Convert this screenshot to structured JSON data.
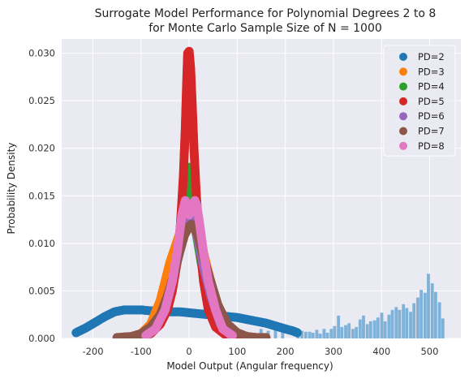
{
  "chart_data": {
    "type": "scatter",
    "title": "Surrogate Model Performance for Polynomial Degrees 2 to 8",
    "subtitle": "for Monte Carlo Sample Size of N = 1000",
    "xlabel": "Model Output (Angular frequency)",
    "ylabel": "Probability Density",
    "xlim": [
      -265,
      565
    ],
    "ylim": [
      0,
      0.0315
    ],
    "xticks": [
      -200,
      -100,
      0,
      100,
      200,
      300,
      400,
      500
    ],
    "yticks": [
      0.0,
      0.005,
      0.01,
      0.015,
      0.02,
      0.025,
      0.03
    ],
    "ytick_labels": [
      "0.000",
      "0.005",
      "0.010",
      "0.015",
      "0.020",
      "0.025",
      "0.030"
    ],
    "grid": true,
    "legend_position": "top-right",
    "colors": {
      "background": "#eaeaf2",
      "grid": "#ffffff",
      "histogram": "#7fb2d8"
    },
    "histogram": {
      "bin_width": 7.5,
      "bins": [
        [
          227,
          0.0006
        ],
        [
          235,
          0.0008
        ],
        [
          243,
          0.0007
        ],
        [
          251,
          0.0007
        ],
        [
          258,
          0.0006
        ],
        [
          266,
          0.0009
        ],
        [
          273,
          0.0005
        ],
        [
          281,
          0.001
        ],
        [
          288,
          0.0006
        ],
        [
          296,
          0.001
        ],
        [
          303,
          0.0013
        ],
        [
          311,
          0.0024
        ],
        [
          318,
          0.0012
        ],
        [
          326,
          0.0014
        ],
        [
          333,
          0.0016
        ],
        [
          341,
          0.001
        ],
        [
          348,
          0.0012
        ],
        [
          356,
          0.002
        ],
        [
          363,
          0.0024
        ],
        [
          371,
          0.0015
        ],
        [
          378,
          0.0018
        ],
        [
          386,
          0.0019
        ],
        [
          393,
          0.0022
        ],
        [
          401,
          0.0027
        ],
        [
          408,
          0.0018
        ],
        [
          416,
          0.0025
        ],
        [
          423,
          0.003
        ],
        [
          431,
          0.0033
        ],
        [
          438,
          0.003
        ],
        [
          446,
          0.0036
        ],
        [
          453,
          0.0032
        ],
        [
          461,
          0.0028
        ],
        [
          468,
          0.0037
        ],
        [
          476,
          0.0043
        ],
        [
          483,
          0.0051
        ],
        [
          491,
          0.0048
        ],
        [
          498,
          0.0068
        ],
        [
          506,
          0.0058
        ],
        [
          513,
          0.0049
        ],
        [
          521,
          0.0038
        ],
        [
          528,
          0.0021
        ],
        [
          90,
          0.0004
        ],
        [
          105,
          0.0005
        ],
        [
          120,
          0.0007
        ],
        [
          135,
          0.0005
        ],
        [
          150,
          0.001
        ],
        [
          165,
          0.0008
        ],
        [
          180,
          0.0009
        ],
        [
          195,
          0.0007
        ]
      ]
    },
    "series": [
      {
        "name": "PD=2",
        "color": "#1f77b4",
        "x": [
          -235,
          -215,
          -195,
          -175,
          -155,
          -135,
          -120,
          -100,
          -80,
          -60,
          -40,
          -20,
          0,
          20,
          40,
          60,
          80,
          100,
          120,
          140,
          160,
          180,
          200,
          215,
          225
        ],
        "y": [
          0.0006,
          0.0011,
          0.0017,
          0.0023,
          0.0028,
          0.003,
          0.003,
          0.003,
          0.0029,
          0.0029,
          0.0028,
          0.0028,
          0.0027,
          0.0026,
          0.0025,
          0.0024,
          0.0023,
          0.0022,
          0.002,
          0.0018,
          0.0016,
          0.0013,
          0.001,
          0.0008,
          0.0006
        ]
      },
      {
        "name": "PD=3",
        "color": "#ff7f0e",
        "x": [
          -100,
          -80,
          -60,
          -50,
          -40,
          -30,
          -20,
          -10,
          0,
          10,
          20,
          30,
          40,
          50,
          60,
          80,
          100
        ],
        "y": [
          0.0005,
          0.0015,
          0.004,
          0.006,
          0.008,
          0.0095,
          0.011,
          0.0125,
          0.013,
          0.0125,
          0.011,
          0.009,
          0.007,
          0.005,
          0.003,
          0.001,
          0.0003
        ]
      },
      {
        "name": "PD=4",
        "color": "#2ca02c",
        "x": [
          -90,
          -70,
          -50,
          -35,
          -25,
          -15,
          -8,
          -3,
          0,
          3,
          8,
          15,
          25,
          35,
          50,
          70,
          90
        ],
        "y": [
          0.0003,
          0.001,
          0.003,
          0.0055,
          0.008,
          0.011,
          0.014,
          0.017,
          0.018,
          0.017,
          0.014,
          0.011,
          0.008,
          0.0055,
          0.003,
          0.001,
          0.0003
        ]
      },
      {
        "name": "PD=5",
        "color": "#d62728",
        "x": [
          -95,
          -80,
          -60,
          -45,
          -35,
          -25,
          -18,
          -12,
          -8,
          -5,
          -3,
          0,
          3,
          6,
          10,
          15,
          22,
          30,
          40,
          55,
          75,
          95
        ],
        "y": [
          0.0002,
          0.0005,
          0.0015,
          0.003,
          0.005,
          0.008,
          0.012,
          0.017,
          0.022,
          0.027,
          0.03,
          0.0302,
          0.0285,
          0.025,
          0.02,
          0.015,
          0.01,
          0.006,
          0.003,
          0.0012,
          0.0004,
          0.0001
        ]
      },
      {
        "name": "PD=6",
        "color": "#9467bd",
        "x": [
          -85,
          -65,
          -45,
          -30,
          -20,
          -10,
          -3,
          0,
          3,
          10,
          20,
          30,
          45,
          65,
          85
        ],
        "y": [
          0.0004,
          0.0015,
          0.004,
          0.007,
          0.0095,
          0.012,
          0.013,
          0.0131,
          0.0128,
          0.012,
          0.01,
          0.0075,
          0.0045,
          0.0015,
          0.0004
        ]
      },
      {
        "name": "PD=7",
        "color": "#8c564b",
        "x": [
          -150,
          -120,
          -100,
          -80,
          -60,
          -45,
          -30,
          -20,
          -10,
          0,
          5,
          10,
          20,
          30,
          45,
          60,
          80,
          100,
          120,
          140,
          160
        ],
        "y": [
          0.0001,
          0.0002,
          0.0005,
          0.0012,
          0.0025,
          0.0045,
          0.007,
          0.009,
          0.0108,
          0.0118,
          0.012,
          0.0117,
          0.0105,
          0.0085,
          0.006,
          0.0035,
          0.0015,
          0.0006,
          0.0002,
          0.0001,
          0.0001
        ]
      },
      {
        "name": "PD=8",
        "color": "#e377c2",
        "x": [
          -90,
          -70,
          -50,
          -35,
          -25,
          -15,
          -8,
          -4,
          0,
          4,
          8,
          12,
          16,
          22,
          30,
          40,
          55,
          70,
          90
        ],
        "y": [
          0.0003,
          0.001,
          0.003,
          0.006,
          0.009,
          0.013,
          0.0145,
          0.014,
          0.013,
          0.0133,
          0.0142,
          0.0145,
          0.014,
          0.012,
          0.009,
          0.006,
          0.003,
          0.001,
          0.0003
        ]
      }
    ]
  }
}
